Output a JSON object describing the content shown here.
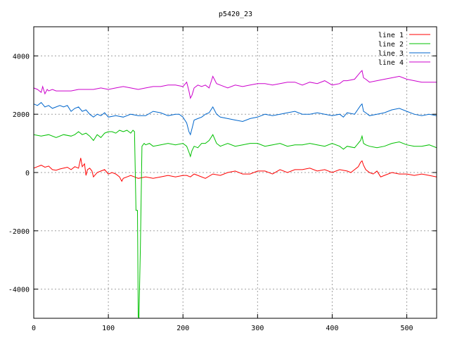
{
  "chart_data": {
    "type": "line",
    "title": "p5420_23",
    "xlabel": "",
    "ylabel": "",
    "xlim": [
      0,
      540
    ],
    "ylim": [
      -5000,
      5000
    ],
    "x_ticks": [
      0,
      100,
      200,
      300,
      400,
      500
    ],
    "y_ticks": [
      -4000,
      -2000,
      0,
      2000,
      4000
    ],
    "grid": true,
    "legend_position": "top-right",
    "series": [
      {
        "name": "line 1",
        "color": "#ff0000",
        "x": [
          0,
          5,
          10,
          15,
          20,
          25,
          30,
          35,
          40,
          45,
          50,
          55,
          60,
          63,
          65,
          68,
          70,
          72,
          75,
          78,
          80,
          85,
          90,
          95,
          100,
          105,
          110,
          115,
          118,
          120,
          125,
          130,
          135,
          140,
          150,
          160,
          170,
          180,
          190,
          200,
          205,
          210,
          215,
          220,
          230,
          240,
          250,
          260,
          270,
          280,
          290,
          300,
          310,
          320,
          330,
          340,
          350,
          360,
          370,
          380,
          390,
          400,
          410,
          420,
          425,
          430,
          435,
          438,
          440,
          442,
          445,
          450,
          455,
          460,
          465,
          470,
          480,
          490,
          500,
          510,
          520,
          530,
          540
        ],
        "y": [
          150,
          200,
          250,
          180,
          220,
          100,
          80,
          120,
          150,
          180,
          100,
          200,
          150,
          500,
          200,
          300,
          -100,
          100,
          150,
          50,
          -150,
          0,
          50,
          100,
          -50,
          0,
          -50,
          -150,
          -300,
          -200,
          -150,
          -100,
          -150,
          -200,
          -150,
          -200,
          -150,
          -100,
          -150,
          -100,
          -100,
          -150,
          -50,
          -100,
          -200,
          -50,
          -100,
          0,
          50,
          -50,
          -50,
          50,
          50,
          -50,
          100,
          0,
          100,
          100,
          150,
          50,
          100,
          0,
          100,
          50,
          0,
          100,
          200,
          350,
          400,
          250,
          100,
          0,
          -50,
          50,
          -150,
          -100,
          0,
          -50,
          -50,
          -100,
          -50,
          -100,
          -150
        ]
      },
      {
        "name": "line 2",
        "color": "#00c000",
        "x": [
          0,
          10,
          20,
          30,
          40,
          50,
          55,
          60,
          65,
          70,
          75,
          80,
          85,
          90,
          95,
          100,
          105,
          110,
          115,
          120,
          125,
          130,
          133,
          135,
          137,
          139,
          140,
          141,
          143,
          145,
          148,
          150,
          155,
          160,
          170,
          180,
          190,
          200,
          205,
          208,
          210,
          212,
          215,
          220,
          225,
          230,
          235,
          240,
          245,
          250,
          260,
          270,
          280,
          290,
          300,
          310,
          320,
          330,
          340,
          350,
          360,
          370,
          380,
          390,
          400,
          410,
          415,
          420,
          430,
          438,
          440,
          442,
          445,
          450,
          460,
          470,
          480,
          490,
          500,
          510,
          520,
          530,
          540
        ],
        "y": [
          1300,
          1250,
          1300,
          1200,
          1300,
          1250,
          1300,
          1400,
          1300,
          1350,
          1250,
          1100,
          1300,
          1200,
          1350,
          1400,
          1400,
          1350,
          1450,
          1400,
          1450,
          1350,
          1450,
          1400,
          -1300,
          -1300,
          -4950,
          -5000,
          -2500,
          900,
          1000,
          950,
          1000,
          900,
          950,
          1000,
          950,
          1000,
          900,
          700,
          550,
          750,
          900,
          850,
          1000,
          1000,
          1100,
          1300,
          1000,
          900,
          1000,
          900,
          950,
          1000,
          1000,
          900,
          950,
          1000,
          900,
          950,
          950,
          1000,
          950,
          900,
          1000,
          900,
          800,
          900,
          850,
          1100,
          1250,
          1000,
          950,
          900,
          850,
          900,
          1000,
          1050,
          950,
          900,
          900,
          950,
          850
        ]
      },
      {
        "name": "line 3",
        "color": "#0066cc",
        "x": [
          0,
          5,
          10,
          15,
          20,
          25,
          30,
          35,
          40,
          45,
          50,
          55,
          60,
          65,
          70,
          75,
          80,
          85,
          90,
          95,
          100,
          110,
          120,
          130,
          140,
          150,
          160,
          170,
          180,
          190,
          195,
          200,
          205,
          208,
          210,
          212,
          215,
          220,
          225,
          230,
          235,
          240,
          245,
          250,
          260,
          270,
          280,
          290,
          300,
          310,
          320,
          330,
          340,
          350,
          360,
          370,
          380,
          390,
          400,
          410,
          415,
          420,
          430,
          438,
          440,
          442,
          445,
          450,
          460,
          470,
          480,
          490,
          500,
          510,
          520,
          530,
          540
        ],
        "y": [
          2350,
          2300,
          2400,
          2250,
          2300,
          2200,
          2250,
          2300,
          2250,
          2300,
          2100,
          2200,
          2250,
          2100,
          2150,
          2000,
          1900,
          2000,
          1950,
          2050,
          1900,
          1950,
          1900,
          2000,
          1950,
          1950,
          2100,
          2050,
          1950,
          2000,
          2000,
          1900,
          1700,
          1400,
          1300,
          1500,
          1800,
          1850,
          1900,
          2000,
          2050,
          2250,
          2000,
          1900,
          1850,
          1800,
          1750,
          1850,
          1900,
          2000,
          1950,
          2000,
          2050,
          2100,
          2000,
          2000,
          2050,
          2000,
          1950,
          2000,
          1900,
          2050,
          2000,
          2300,
          2350,
          2100,
          2050,
          1950,
          2000,
          2050,
          2150,
          2200,
          2100,
          2000,
          1950,
          2000,
          1950
        ]
      },
      {
        "name": "line 4",
        "color": "#cc00cc",
        "x": [
          0,
          5,
          10,
          12,
          15,
          18,
          20,
          25,
          30,
          40,
          50,
          60,
          70,
          80,
          90,
          100,
          110,
          120,
          130,
          140,
          150,
          160,
          170,
          180,
          190,
          200,
          205,
          208,
          210,
          212,
          215,
          220,
          225,
          230,
          235,
          240,
          245,
          250,
          260,
          270,
          280,
          290,
          300,
          310,
          320,
          330,
          340,
          350,
          360,
          370,
          380,
          390,
          400,
          410,
          415,
          420,
          430,
          438,
          440,
          442,
          445,
          450,
          460,
          470,
          480,
          490,
          500,
          510,
          520,
          530,
          540
        ],
        "y": [
          2900,
          2850,
          2750,
          2950,
          2700,
          2850,
          2800,
          2850,
          2800,
          2800,
          2800,
          2850,
          2850,
          2850,
          2900,
          2850,
          2900,
          2950,
          2900,
          2850,
          2900,
          2950,
          2950,
          3000,
          3000,
          2950,
          3100,
          2800,
          2550,
          2650,
          2900,
          3000,
          2950,
          3000,
          2900,
          3300,
          3050,
          3000,
          2900,
          3000,
          2950,
          3000,
          3050,
          3050,
          3000,
          3050,
          3100,
          3100,
          3000,
          3100,
          3050,
          3150,
          3000,
          3050,
          3150,
          3150,
          3200,
          3450,
          3500,
          3250,
          3200,
          3100,
          3150,
          3200,
          3250,
          3300,
          3200,
          3150,
          3100,
          3100,
          3100
        ]
      }
    ]
  }
}
